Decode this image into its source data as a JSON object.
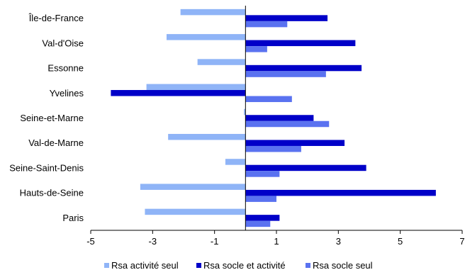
{
  "chart_data": {
    "type": "bar",
    "orientation": "horizontal",
    "categories": [
      "Île-de-France",
      "Val-d'Oise",
      "Essonne",
      "Yvelines",
      "Seine-et-Marne",
      "Val-de-Marne",
      "Seine-Saint-Denis",
      "Hauts-de-Seine",
      "Paris"
    ],
    "series": [
      {
        "name": "Rsa activité seul",
        "color": "#8fb4f7",
        "values": [
          -2.1,
          -2.55,
          -1.55,
          -3.2,
          -0.05,
          -2.5,
          -0.65,
          -3.4,
          -3.25
        ]
      },
      {
        "name": "Rsa socle et activité",
        "color": "#0000c8",
        "values": [
          2.65,
          3.55,
          3.75,
          -4.35,
          2.2,
          3.2,
          3.9,
          6.15,
          1.1
        ]
      },
      {
        "name": "Rsa socle seul",
        "color": "#5a72f0",
        "values": [
          1.35,
          0.7,
          2.6,
          1.5,
          2.7,
          1.8,
          1.1,
          1.0,
          0.8
        ]
      }
    ],
    "xlim": [
      -5,
      7
    ],
    "xticks": [
      -5,
      -3,
      -1,
      1,
      3,
      5,
      7
    ],
    "xtick_labels": [
      "-5",
      "-3",
      "-1",
      "1",
      "3",
      "5",
      "7"
    ],
    "grid": false,
    "legend_position": "bottom"
  }
}
